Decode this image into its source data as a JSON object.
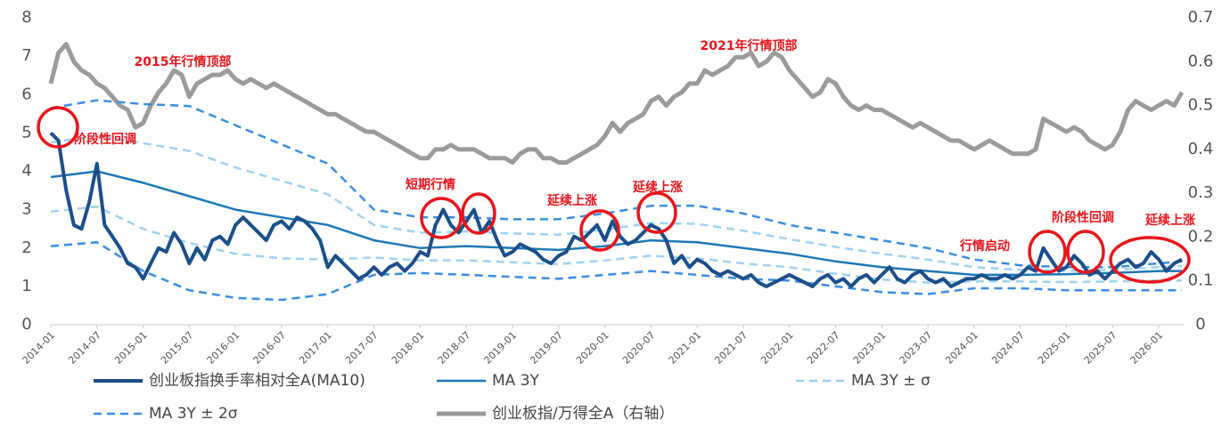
{
  "chart_data": {
    "type": "line",
    "annotations": [
      "2015年行情顶部",
      "2021年行情顶部",
      "阶段性回调",
      "短期行情",
      "延续上涨",
      "延续上涨",
      "行情启动",
      "阶段性回调",
      "延续上涨"
    ],
    "xlim": [
      "2014-01",
      "2026-04"
    ],
    "xticks": [
      "2014-01",
      "2014-07",
      "2015-01",
      "2015-07",
      "2016-01",
      "2016-07",
      "2017-01",
      "2017-07",
      "2018-01",
      "2018-07",
      "2019-01",
      "2019-07",
      "2020-01",
      "2020-07",
      "2021-01",
      "2021-07",
      "2022-01",
      "2022-07",
      "2023-01",
      "2023-07",
      "2024-01",
      "2024-07",
      "2025-01",
      "2025-07",
      "2026-01"
    ],
    "ylim": [
      0,
      8
    ],
    "yticks": [
      0,
      1,
      2,
      3,
      4,
      5,
      6,
      7,
      8
    ],
    "y2lim": [
      0,
      0.7
    ],
    "y2ticks": [
      0,
      0.1,
      0.2,
      0.3,
      0.4,
      0.5,
      0.6,
      0.7
    ],
    "x": [
      "2014-01",
      "2014-02",
      "2014-03",
      "2014-04",
      "2014-05",
      "2014-06",
      "2014-07",
      "2014-08",
      "2014-09",
      "2014-10",
      "2014-11",
      "2014-12",
      "2015-01",
      "2015-02",
      "2015-03",
      "2015-04",
      "2015-05",
      "2015-06",
      "2015-07",
      "2015-08",
      "2015-09",
      "2015-10",
      "2015-11",
      "2015-12",
      "2016-01",
      "2016-02",
      "2016-03",
      "2016-04",
      "2016-05",
      "2016-06",
      "2016-07",
      "2016-08",
      "2016-09",
      "2016-10",
      "2016-11",
      "2016-12",
      "2017-01",
      "2017-02",
      "2017-03",
      "2017-04",
      "2017-05",
      "2017-06",
      "2017-07",
      "2017-08",
      "2017-09",
      "2017-10",
      "2017-11",
      "2017-12",
      "2018-01",
      "2018-02",
      "2018-03",
      "2018-04",
      "2018-05",
      "2018-06",
      "2018-07",
      "2018-08",
      "2018-09",
      "2018-10",
      "2018-11",
      "2018-12",
      "2019-01",
      "2019-02",
      "2019-03",
      "2019-04",
      "2019-05",
      "2019-06",
      "2019-07",
      "2019-08",
      "2019-09",
      "2019-10",
      "2019-11",
      "2019-12",
      "2020-01",
      "2020-02",
      "2020-03",
      "2020-04",
      "2020-05",
      "2020-06",
      "2020-07",
      "2020-08",
      "2020-09",
      "2020-10",
      "2020-11",
      "2020-12",
      "2021-01",
      "2021-02",
      "2021-03",
      "2021-04",
      "2021-05",
      "2021-06",
      "2021-07",
      "2021-08",
      "2021-09",
      "2021-10",
      "2021-11",
      "2021-12",
      "2022-01",
      "2022-02",
      "2022-03",
      "2022-04",
      "2022-05",
      "2022-06",
      "2022-07",
      "2022-08",
      "2022-09",
      "2022-10",
      "2022-11",
      "2022-12",
      "2023-01",
      "2023-02",
      "2023-03",
      "2023-04",
      "2023-05",
      "2023-06",
      "2023-07",
      "2023-08",
      "2023-09",
      "2023-10",
      "2023-11",
      "2023-12",
      "2024-01",
      "2024-02",
      "2024-03",
      "2024-04",
      "2024-05",
      "2024-06",
      "2024-07",
      "2024-08",
      "2024-09",
      "2024-10",
      "2024-11",
      "2024-12",
      "2025-01",
      "2025-02",
      "2025-03",
      "2025-04",
      "2025-05",
      "2025-06",
      "2025-07",
      "2025-08",
      "2025-09",
      "2025-10",
      "2025-11",
      "2025-12",
      "2026-01",
      "2026-02",
      "2026-03",
      "2026-04"
    ],
    "series": [
      {
        "name": "创业板指换手率相对全A(MA10)",
        "color": "#1c4f8a",
        "line_style": "solid",
        "values": [
          5.0,
          4.8,
          3.5,
          2.6,
          2.5,
          3.2,
          4.2,
          2.6,
          2.3,
          2.0,
          1.6,
          1.5,
          1.2,
          1.6,
          2.0,
          1.9,
          2.4,
          2.1,
          1.6,
          2.0,
          1.7,
          2.2,
          2.3,
          2.1,
          2.6,
          2.8,
          2.6,
          2.4,
          2.2,
          2.6,
          2.7,
          2.5,
          2.8,
          2.7,
          2.5,
          2.2,
          1.5,
          1.8,
          1.6,
          1.4,
          1.2,
          1.3,
          1.5,
          1.3,
          1.5,
          1.6,
          1.4,
          1.6,
          1.9,
          1.8,
          2.6,
          3.0,
          2.6,
          2.4,
          2.7,
          3.0,
          2.4,
          2.7,
          2.2,
          1.8,
          1.9,
          2.1,
          2.0,
          1.9,
          1.7,
          1.6,
          1.8,
          1.9,
          2.3,
          2.2,
          2.4,
          2.6,
          2.2,
          2.7,
          2.3,
          2.1,
          2.2,
          2.4,
          2.6,
          2.5,
          2.2,
          1.6,
          1.8,
          1.5,
          1.7,
          1.6,
          1.4,
          1.3,
          1.4,
          1.3,
          1.2,
          1.3,
          1.1,
          1.0,
          1.1,
          1.2,
          1.3,
          1.2,
          1.1,
          1.0,
          1.2,
          1.3,
          1.1,
          1.2,
          1.0,
          1.2,
          1.3,
          1.1,
          1.3,
          1.5,
          1.2,
          1.1,
          1.3,
          1.4,
          1.2,
          1.1,
          1.2,
          1.0,
          1.1,
          1.2,
          1.2,
          1.3,
          1.2,
          1.2,
          1.3,
          1.2,
          1.3,
          1.5,
          1.4,
          2.0,
          1.7,
          1.4,
          1.5,
          1.8,
          1.6,
          1.3,
          1.4,
          1.2,
          1.4,
          1.6,
          1.7,
          1.5,
          1.6,
          1.9,
          1.7,
          1.4,
          1.6,
          1.7
        ]
      },
      {
        "name": "MA 3Y",
        "color": "#1f78b4",
        "line_style": "solid",
        "x": [
          "2014-01",
          "2014-07",
          "2015-01",
          "2015-07",
          "2016-01",
          "2016-07",
          "2017-01",
          "2017-07",
          "2018-01",
          "2018-07",
          "2019-01",
          "2019-07",
          "2020-01",
          "2020-07",
          "2021-01",
          "2021-07",
          "2022-01",
          "2022-07",
          "2023-01",
          "2023-07",
          "2024-01",
          "2024-07",
          "2025-01",
          "2025-07",
          "2026-01",
          "2026-04"
        ],
        "values": [
          3.85,
          4.0,
          3.7,
          3.35,
          3.0,
          2.8,
          2.6,
          2.2,
          2.0,
          2.05,
          2.0,
          1.95,
          2.05,
          2.2,
          2.15,
          2.0,
          1.85,
          1.65,
          1.5,
          1.4,
          1.3,
          1.3,
          1.32,
          1.35,
          1.4,
          1.4
        ]
      },
      {
        "name": "MA 3Y ± σ",
        "color": "#9dd3f2",
        "line_style": "dashed",
        "x": [
          "2014-01",
          "2014-07",
          "2015-01",
          "2015-07",
          "2016-01",
          "2016-07",
          "2017-01",
          "2017-07",
          "2018-01",
          "2018-07",
          "2019-01",
          "2019-07",
          "2020-01",
          "2020-07",
          "2021-01",
          "2021-07",
          "2022-01",
          "2022-07",
          "2023-01",
          "2023-07",
          "2024-01",
          "2024-07",
          "2025-01",
          "2025-07",
          "2026-01",
          "2026-04"
        ],
        "values": [
          4.75,
          4.93,
          4.73,
          4.53,
          4.1,
          3.75,
          3.4,
          2.6,
          2.4,
          2.43,
          2.38,
          2.35,
          2.48,
          2.65,
          2.63,
          2.45,
          2.23,
          2.03,
          1.85,
          1.7,
          1.5,
          1.43,
          1.41,
          1.43,
          1.5,
          1.53
        ],
        "values_lower": [
          2.95,
          3.08,
          2.5,
          2.13,
          1.85,
          1.73,
          1.7,
          1.75,
          1.68,
          1.68,
          1.63,
          1.58,
          1.68,
          1.8,
          1.73,
          1.6,
          1.5,
          1.33,
          1.18,
          1.1,
          1.13,
          1.13,
          1.11,
          1.13,
          1.15,
          1.15
        ]
      },
      {
        "name": "MA 3Y ± 2σ",
        "color": "#3b8ee0",
        "line_style": "dashed",
        "x": [
          "2014-01",
          "2014-07",
          "2015-01",
          "2015-07",
          "2016-01",
          "2016-07",
          "2017-01",
          "2017-07",
          "2018-01",
          "2018-07",
          "2019-01",
          "2019-07",
          "2020-01",
          "2020-07",
          "2021-01",
          "2021-07",
          "2022-01",
          "2022-07",
          "2023-01",
          "2023-07",
          "2024-01",
          "2024-07",
          "2025-01",
          "2025-07",
          "2026-01",
          "2026-04"
        ],
        "values": [
          5.65,
          5.85,
          5.75,
          5.7,
          5.2,
          4.7,
          4.2,
          3.0,
          2.8,
          2.8,
          2.75,
          2.75,
          2.9,
          3.1,
          3.1,
          2.9,
          2.6,
          2.4,
          2.2,
          2.0,
          1.7,
          1.55,
          1.5,
          1.5,
          1.6,
          1.65
        ],
        "values_lower": [
          2.05,
          2.15,
          1.4,
          0.9,
          0.7,
          0.65,
          0.8,
          1.3,
          1.35,
          1.3,
          1.25,
          1.2,
          1.3,
          1.4,
          1.3,
          1.2,
          1.15,
          1.0,
          0.85,
          0.8,
          0.95,
          0.95,
          0.9,
          0.9,
          0.9,
          0.9
        ]
      },
      {
        "name": "创业板指/万得全A（右轴）",
        "color": "#9b9b9b",
        "line_style": "solid",
        "axis": "y2",
        "values": [
          0.55,
          0.62,
          0.64,
          0.6,
          0.58,
          0.57,
          0.55,
          0.54,
          0.52,
          0.5,
          0.49,
          0.45,
          0.46,
          0.5,
          0.53,
          0.55,
          0.58,
          0.57,
          0.52,
          0.55,
          0.56,
          0.57,
          0.57,
          0.58,
          0.56,
          0.55,
          0.56,
          0.55,
          0.54,
          0.55,
          0.54,
          0.53,
          0.52,
          0.51,
          0.5,
          0.49,
          0.48,
          0.48,
          0.47,
          0.46,
          0.45,
          0.44,
          0.44,
          0.43,
          0.42,
          0.41,
          0.4,
          0.39,
          0.38,
          0.38,
          0.4,
          0.4,
          0.41,
          0.4,
          0.4,
          0.4,
          0.39,
          0.38,
          0.38,
          0.38,
          0.37,
          0.39,
          0.4,
          0.4,
          0.38,
          0.38,
          0.37,
          0.37,
          0.38,
          0.39,
          0.4,
          0.41,
          0.43,
          0.46,
          0.44,
          0.46,
          0.47,
          0.48,
          0.51,
          0.52,
          0.5,
          0.52,
          0.53,
          0.55,
          0.55,
          0.58,
          0.57,
          0.58,
          0.59,
          0.61,
          0.61,
          0.62,
          0.59,
          0.6,
          0.62,
          0.61,
          0.58,
          0.56,
          0.54,
          0.52,
          0.53,
          0.56,
          0.55,
          0.52,
          0.5,
          0.49,
          0.5,
          0.49,
          0.49,
          0.48,
          0.47,
          0.46,
          0.45,
          0.46,
          0.45,
          0.44,
          0.43,
          0.42,
          0.42,
          0.41,
          0.4,
          0.41,
          0.42,
          0.41,
          0.4,
          0.39,
          0.39,
          0.39,
          0.4,
          0.47,
          0.46,
          0.45,
          0.44,
          0.45,
          0.44,
          0.42,
          0.41,
          0.4,
          0.41,
          0.44,
          0.49,
          0.51,
          0.5,
          0.49,
          0.5,
          0.51,
          0.5,
          0.53
        ]
      }
    ]
  }
}
